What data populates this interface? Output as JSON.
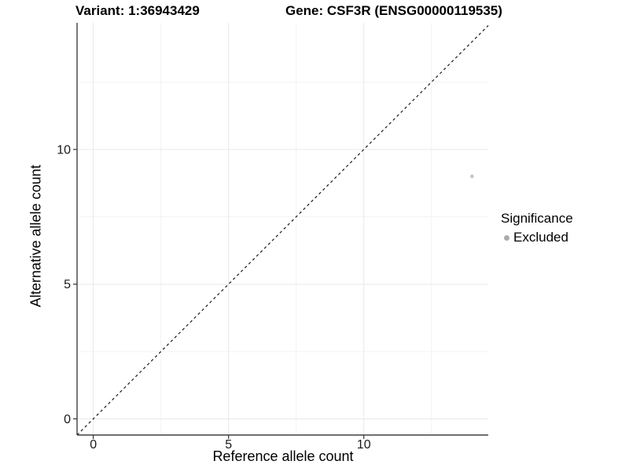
{
  "chart_data": {
    "type": "scatter",
    "titles": {
      "left": "Variant: 1:36943429",
      "right": "Gene: CSF3R (ENSG00000119535)"
    },
    "xlabel": "Reference allele count",
    "ylabel": "Alternative allele count",
    "xlim": [
      -0.6,
      14.6
    ],
    "ylim": [
      -0.6,
      14.7
    ],
    "xticks": [
      0,
      5,
      10
    ],
    "yticks": [
      0,
      5,
      10
    ],
    "xticks_minor": [
      2.5,
      7.5,
      12.5
    ],
    "yticks_minor": [
      2.5,
      7.5,
      12.5
    ],
    "grid": {
      "major": true,
      "minor": true
    },
    "identity_line": {
      "equation": "y = x",
      "style": "dashed",
      "color": "#1a1a1a"
    },
    "series": [
      {
        "name": "Excluded",
        "color": "#c3c3c3",
        "points": [
          [
            14,
            9
          ]
        ]
      }
    ],
    "legend": {
      "position": "right",
      "title": "Significance",
      "entries": [
        {
          "label": "Excluded",
          "color": "#acacac",
          "marker": "circle"
        }
      ]
    }
  },
  "colors": {
    "background": "#ffffff",
    "grid_major": "#e8e8e8",
    "grid_minor": "#f3f3f3",
    "axis_line": "#404040",
    "tick": "#333333",
    "tick_label": "#1a1a1a"
  }
}
